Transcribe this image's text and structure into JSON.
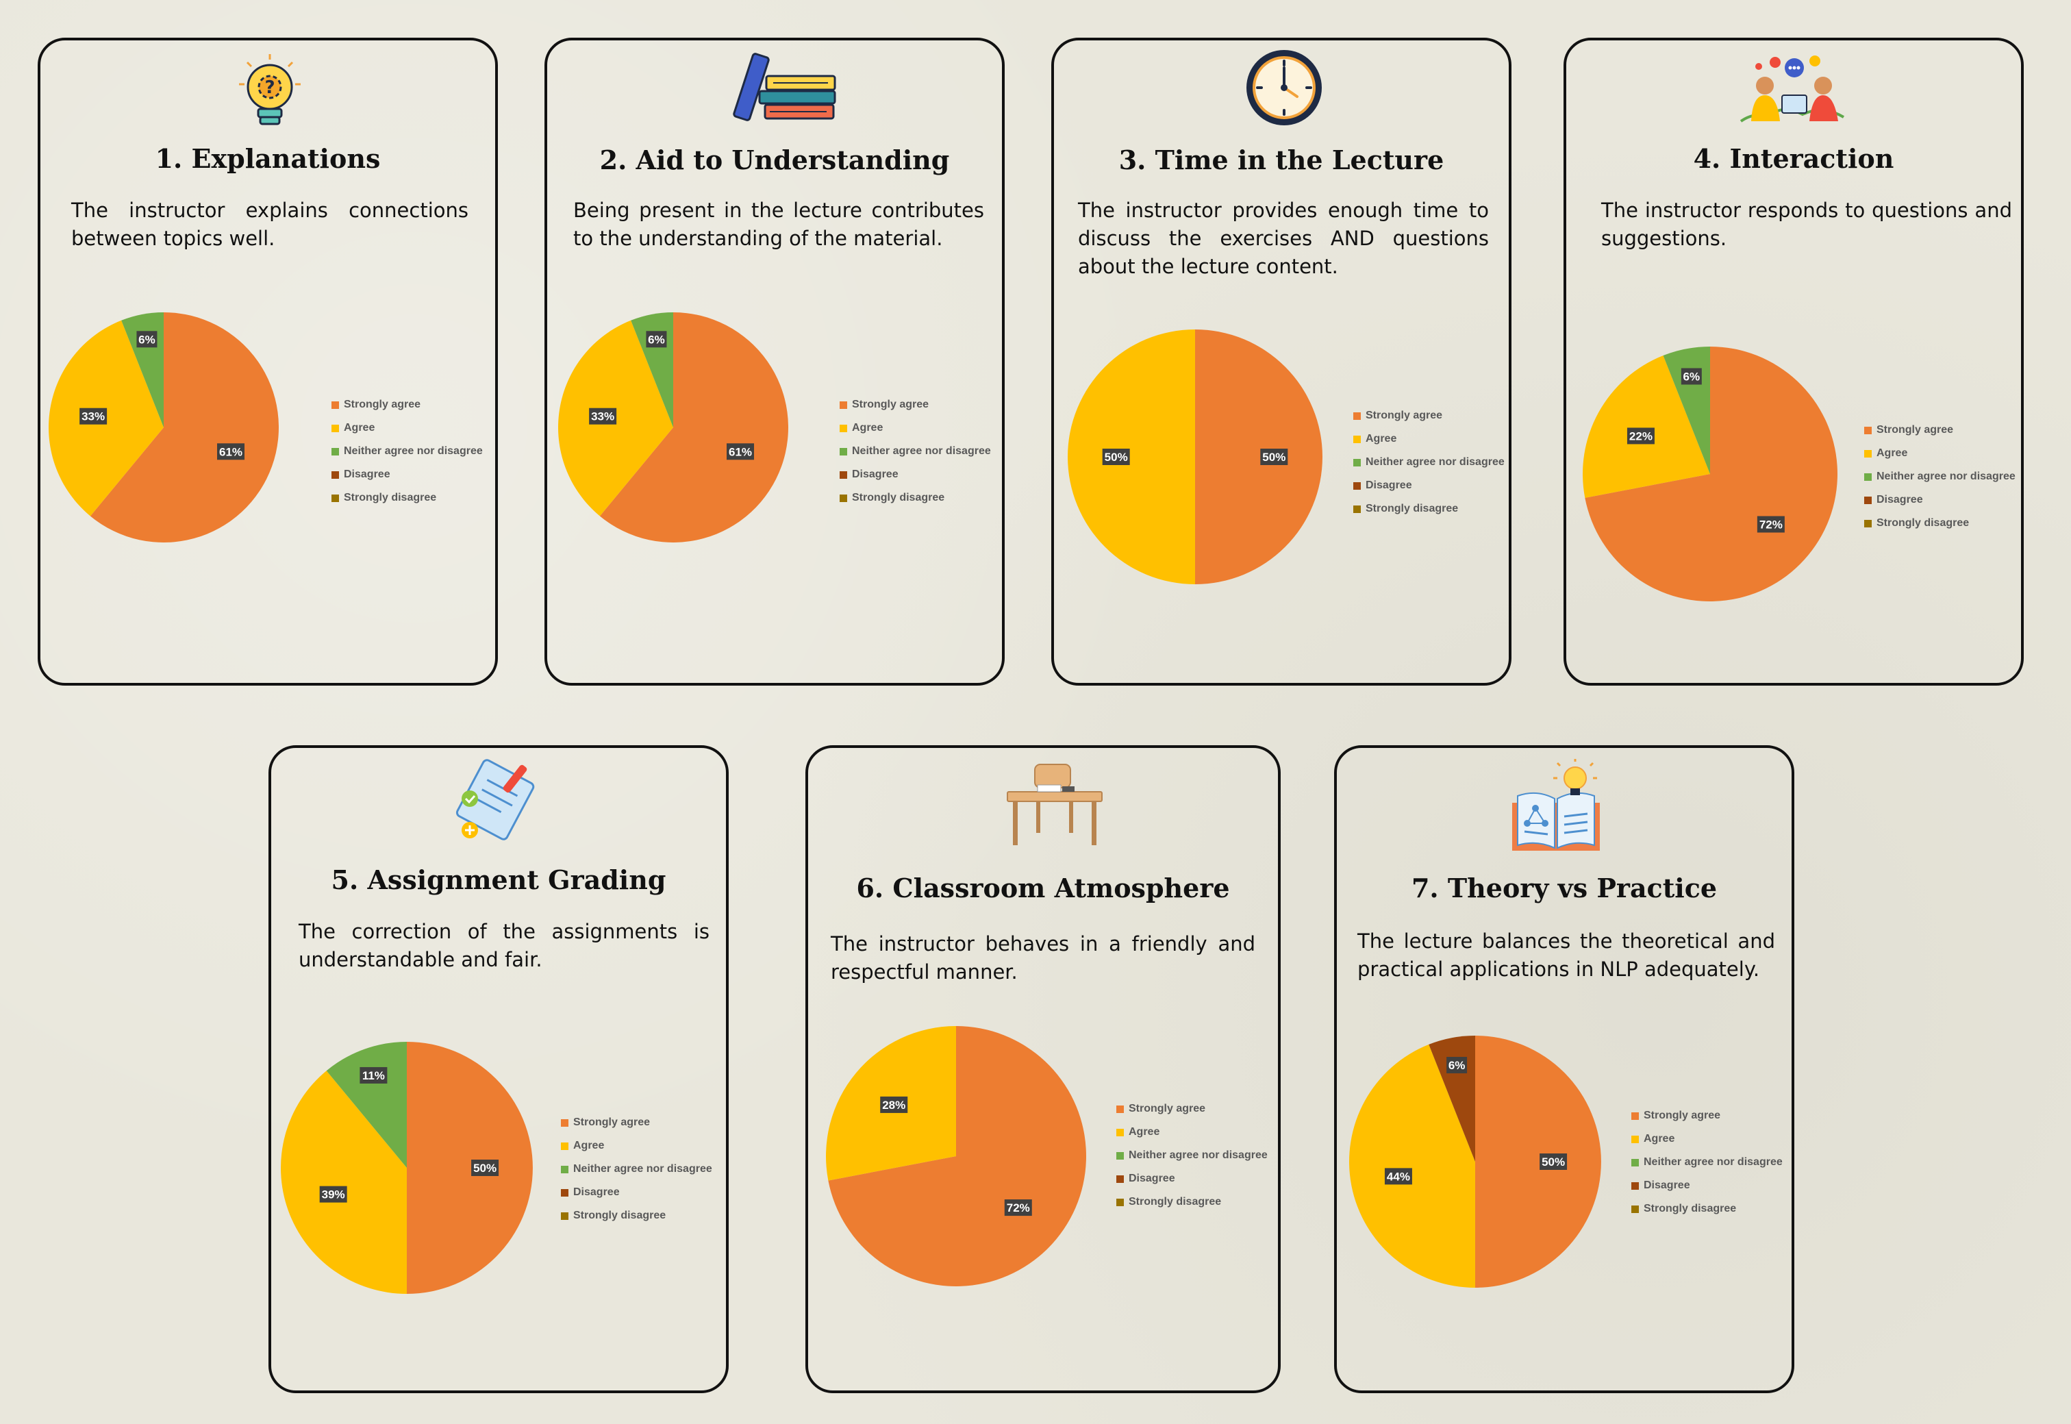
{
  "colors": {
    "strongly_agree": "#ed7d31",
    "agree": "#ffc000",
    "neither": "#70ad47",
    "disagree": "#9e480e",
    "strongly_disagree": "#997300",
    "label_bg": "#404040",
    "card_border": "#111111"
  },
  "legend_labels": [
    "Strongly agree",
    "Agree",
    "Neither agree nor disagree",
    "Disagree",
    "Strongly disagree"
  ],
  "cards": [
    {
      "title": "1. Explanations",
      "description": "The instructor explains connections between topics well.",
      "icon": "lightbulb-question-icon"
    },
    {
      "title": "2. Aid to Understanding",
      "description": "Being present in the lecture contributes to the understanding of the material.",
      "icon": "books-icon"
    },
    {
      "title": "3. Time in the Lecture",
      "description": "The instructor provides enough time to discuss the exercises AND questions about the lecture content.",
      "icon": "clock-icon"
    },
    {
      "title": "4. Interaction",
      "description": "The instructor responds to questions and suggestions.",
      "icon": "conversation-icon"
    },
    {
      "title": "5. Assignment Grading",
      "description": "The correction of the assignments is understandable and fair.",
      "icon": "graded-paper-icon"
    },
    {
      "title": "6. Classroom Atmosphere",
      "description": "The instructor behaves in a friendly and respectful manner.",
      "icon": "desk-icon"
    },
    {
      "title": "7. Theory vs Practice",
      "description": "The lecture balances the theoretical and practical applications in NLP adequately.",
      "icon": "book-lightbulb-icon"
    }
  ],
  "chart_data": [
    {
      "type": "pie",
      "title": "1. Explanations",
      "categories": [
        "Strongly agree",
        "Agree",
        "Neither agree nor disagree",
        "Disagree",
        "Strongly disagree"
      ],
      "values": [
        61,
        33,
        6,
        0,
        0
      ],
      "labels": [
        "61%",
        "33%",
        "6%",
        "",
        ""
      ],
      "legend": "right"
    },
    {
      "type": "pie",
      "title": "2. Aid to Understanding",
      "categories": [
        "Strongly agree",
        "Agree",
        "Neither agree nor disagree",
        "Disagree",
        "Strongly disagree"
      ],
      "values": [
        61,
        33,
        6,
        0,
        0
      ],
      "labels": [
        "61%",
        "33%",
        "6%",
        "",
        ""
      ],
      "legend": "right"
    },
    {
      "type": "pie",
      "title": "3. Time in the Lecture",
      "categories": [
        "Strongly agree",
        "Agree",
        "Neither agree nor disagree",
        "Disagree",
        "Strongly disagree"
      ],
      "values": [
        50,
        50,
        0,
        0,
        0
      ],
      "labels": [
        "50%",
        "50%",
        "",
        "",
        ""
      ],
      "legend": "right"
    },
    {
      "type": "pie",
      "title": "4. Interaction",
      "categories": [
        "Strongly agree",
        "Agree",
        "Neither agree nor disagree",
        "Disagree",
        "Strongly disagree"
      ],
      "values": [
        72,
        22,
        6,
        0,
        0
      ],
      "labels": [
        "72%",
        "22%",
        "6%",
        "",
        ""
      ],
      "legend": "right"
    },
    {
      "type": "pie",
      "title": "5. Assignment Grading",
      "categories": [
        "Strongly agree",
        "Agree",
        "Neither agree nor disagree",
        "Disagree",
        "Strongly disagree"
      ],
      "values": [
        50,
        39,
        11,
        0,
        0
      ],
      "labels": [
        "50%",
        "39%",
        "11%",
        "",
        ""
      ],
      "legend": "right"
    },
    {
      "type": "pie",
      "title": "6. Classroom Atmosphere",
      "categories": [
        "Strongly agree",
        "Agree",
        "Neither agree nor disagree",
        "Disagree",
        "Strongly disagree"
      ],
      "values": [
        72,
        28,
        0,
        0,
        0
      ],
      "labels": [
        "72%",
        "28%",
        "",
        "",
        ""
      ],
      "legend": "right"
    },
    {
      "type": "pie",
      "title": "7. Theory vs Practice",
      "categories": [
        "Strongly agree",
        "Agree",
        "Neither agree nor disagree",
        "Disagree",
        "Strongly disagree"
      ],
      "values": [
        50,
        44,
        0,
        6,
        0
      ],
      "labels": [
        "50%",
        "44%",
        "",
        "6%",
        ""
      ],
      "legend": "right"
    }
  ]
}
